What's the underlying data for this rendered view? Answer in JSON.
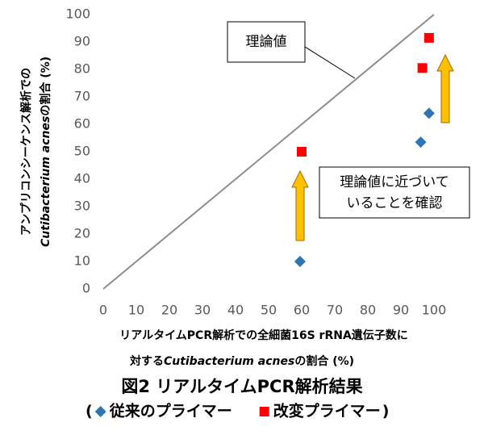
{
  "chart_data": {
    "type": "scatter",
    "title": "図2 リアルタイムPCR解析結果",
    "y_label": [
      [
        "アンプリコンシーケンス解析での"
      ],
      [
        "Cutibacterium acnes",
        "の割合 (%)"
      ]
    ],
    "x_label": [
      [
        "リアルタイムPCR解析での全細菌16S rRNA遺伝子数に"
      ],
      [
        "対する",
        "Cutibacterium acnes",
        "の割合 (%)"
      ]
    ],
    "legend_open": "(",
    "legend_close": ")",
    "series": [
      {
        "name": "従来のプライマー",
        "color": "#2e75b6",
        "marker": "diamond",
        "x": [
          59.5,
          96,
          98.5
        ],
        "values": [
          10,
          53.5,
          64
        ]
      },
      {
        "name": "改変プライマー",
        "color": "#ff0000",
        "marker": "square",
        "x": [
          60,
          96.5,
          98.5
        ],
        "values": [
          50,
          80.5,
          91.5
        ]
      }
    ],
    "annotations": [
      [
        "理論値"
      ],
      [
        "理論値に近づいて",
        "いることを確認"
      ]
    ],
    "xlim": [
      0,
      100
    ],
    "ylim": [
      0,
      100
    ],
    "xticks": [
      0,
      10,
      20,
      30,
      40,
      50,
      60,
      70,
      80,
      90,
      100
    ],
    "yticks": [
      0,
      10,
      20,
      30,
      40,
      50,
      60,
      70,
      80,
      90,
      100
    ],
    "grid": false
  }
}
